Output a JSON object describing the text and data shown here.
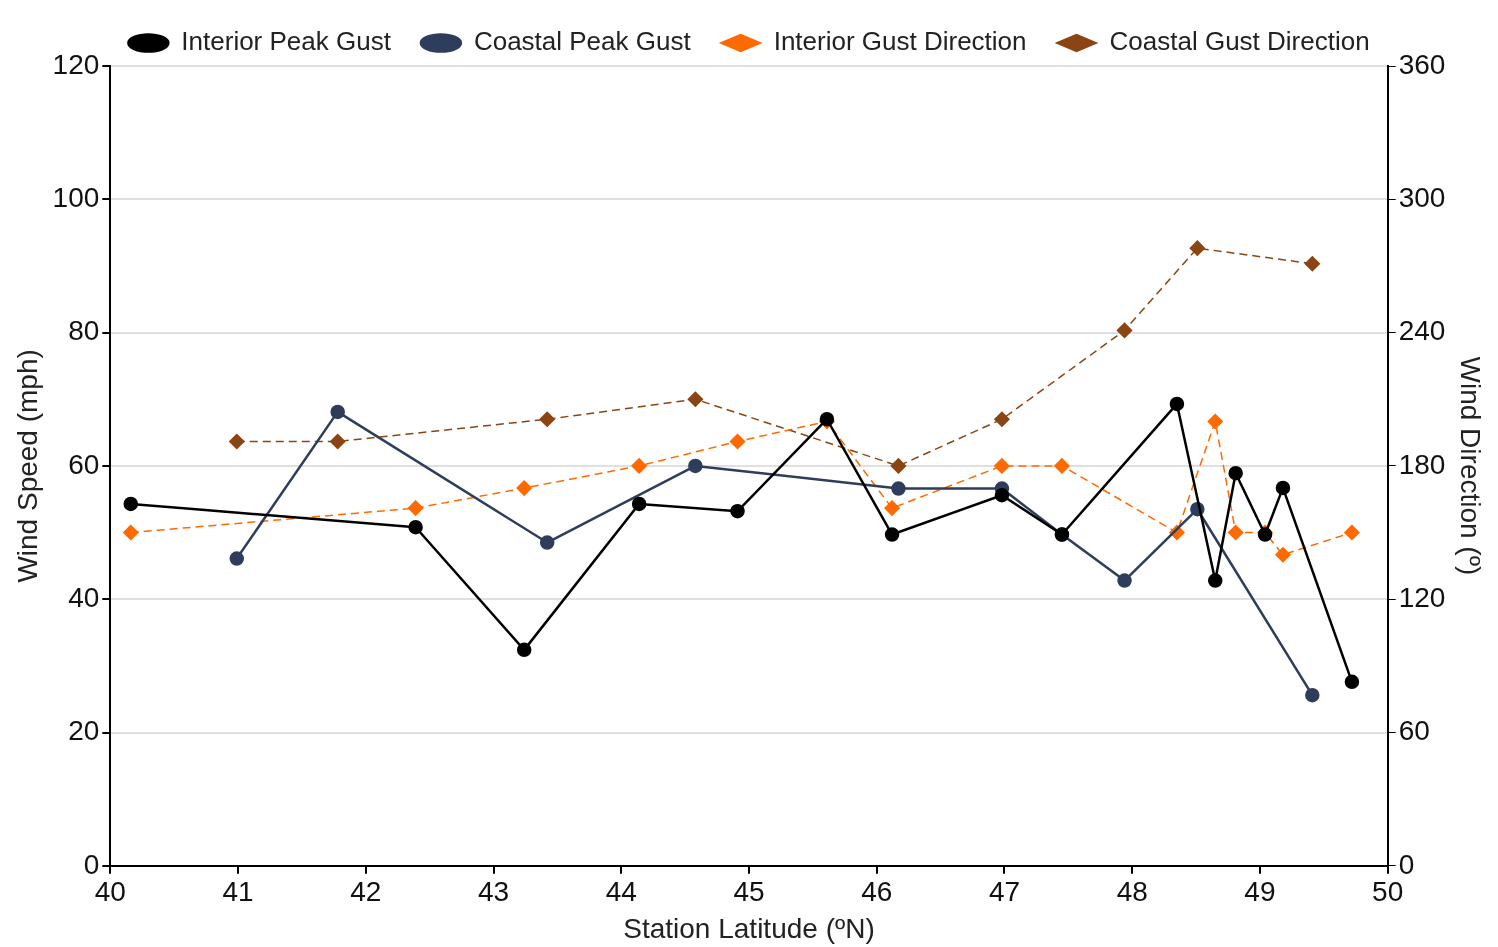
{
  "chart_data": {
    "type": "line",
    "xlabel": "Station Latitude (ºN)",
    "ylabel": "Wind Speed (mph)",
    "y2label": "Wind Direction (º)",
    "xlim": [
      40,
      50
    ],
    "xticks": [
      40,
      41,
      42,
      43,
      44,
      45,
      46,
      47,
      48,
      49,
      50
    ],
    "ylim": [
      0,
      120
    ],
    "yticks": [
      0,
      20,
      40,
      60,
      80,
      100,
      120
    ],
    "y2lim": [
      0,
      360
    ],
    "y2ticks": [
      0,
      60,
      120,
      180,
      240,
      300,
      360
    ],
    "grid": "y",
    "legend": "top",
    "series": [
      {
        "name": "Interior Peak Gust",
        "color": "#000000",
        "marker": "circle",
        "line_style": "solid",
        "x": [
          40.16,
          42.39,
          43.24,
          44.14,
          44.91,
          45.61,
          46.12,
          46.98,
          47.45,
          48.35,
          48.65,
          48.81,
          49.04,
          49.18,
          49.72
        ],
        "values": [
          54.3,
          50.8,
          32.4,
          54.3,
          53.2,
          67,
          49.7,
          55.6,
          49.7,
          69.3,
          42.8,
          58.9,
          49.7,
          56.7,
          27.6
        ]
      },
      {
        "name": "Coastal Peak Gust",
        "color": "#2e3d5c",
        "marker": "circle",
        "line_style": "solid",
        "x": [
          40.99,
          41.78,
          43.42,
          44.58,
          46.17,
          46.98,
          47.45,
          47.94,
          48.51,
          49.41
        ],
        "values": [
          46.1,
          68.1,
          48.5,
          60,
          56.6,
          56.6,
          49.7,
          42.8,
          53.5,
          25.6
        ]
      },
      {
        "name": "Interior Gust Direction",
        "color": "#ff6a00",
        "marker": "diamond",
        "line_style": "dashed",
        "axis": "y2",
        "x": [
          40.16,
          42.39,
          43.24,
          44.14,
          44.91,
          45.61,
          46.12,
          46.98,
          47.45,
          48.35,
          48.65,
          48.81,
          49.04,
          49.18,
          49.72
        ],
        "values": [
          150,
          161,
          170,
          180,
          191,
          200,
          161,
          180,
          180,
          150,
          200,
          150,
          150,
          140,
          150
        ]
      },
      {
        "name": "Coastal Gust Direction",
        "color": "#8b4513",
        "marker": "diamond",
        "line_style": "dashed",
        "axis": "y2",
        "x": [
          40.99,
          41.78,
          43.42,
          44.58,
          46.17,
          46.98,
          47.94,
          48.51,
          49.41
        ],
        "values": [
          191,
          191,
          201,
          210,
          180,
          201,
          241,
          278,
          271
        ]
      }
    ]
  }
}
